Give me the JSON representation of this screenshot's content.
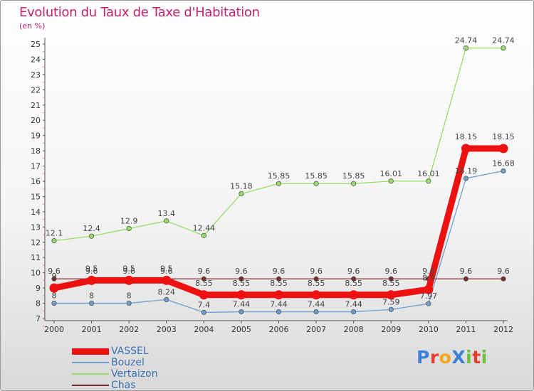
{
  "chart_data": {
    "type": "line",
    "title": "Evolution du Taux de Taxe d'Habitation",
    "subtitle": "(en %)",
    "x": [
      "2000",
      "2001",
      "2002",
      "2003",
      "2004",
      "2005",
      "2006",
      "2007",
      "2008",
      "2009",
      "2010",
      "2011",
      "2012"
    ],
    "ylim": [
      7,
      25
    ],
    "yticks": [
      7,
      8,
      9,
      10,
      11,
      12,
      13,
      14,
      15,
      16,
      17,
      18,
      19,
      20,
      21,
      22,
      23,
      24,
      25
    ],
    "grid": false,
    "legend_position": "bottom-left",
    "series": [
      {
        "name": "VASSEL",
        "color": "#ee1111",
        "values": [
          9.0,
          9.5,
          9.5,
          9.5,
          8.55,
          8.55,
          8.55,
          8.55,
          8.55,
          8.55,
          8.9,
          18.15,
          18.15
        ],
        "labels": [
          "9",
          "9.5",
          "9.5",
          "9.5",
          "8.55",
          "8.55",
          "8.55",
          "8.55",
          "8.55",
          "8.55",
          "8.9",
          "18.15",
          "18.15"
        ]
      },
      {
        "name": "Bouzel",
        "color": "#6f9fd0",
        "values": [
          8,
          8,
          8,
          8.24,
          7.4,
          7.44,
          7.44,
          7.44,
          7.44,
          7.59,
          7.97,
          16.19,
          16.68
        ],
        "labels": [
          "8",
          "8",
          "8",
          "8.24",
          "7.4",
          "7.44",
          "7.44",
          "7.44",
          "7.44",
          "7.59",
          "7.97",
          "16.19",
          "16.68"
        ]
      },
      {
        "name": "Vertaizon",
        "color": "#99dd66",
        "values": [
          12.1,
          12.4,
          12.9,
          13.4,
          12.44,
          15.18,
          15.85,
          15.85,
          15.85,
          16.01,
          16.01,
          24.74,
          24.74
        ],
        "labels": [
          "12.1",
          "12.4",
          "12.9",
          "13.4",
          "12.44",
          "15.18",
          "15.85",
          "15.85",
          "15.85",
          "16.01",
          "16.01",
          "24.74",
          "24.74"
        ]
      },
      {
        "name": "Chas",
        "color": "#7a2c2c",
        "values": [
          9.6,
          9.6,
          9.6,
          9.6,
          9.6,
          9.6,
          9.6,
          9.6,
          9.6,
          9.6,
          9.6,
          9.6,
          9.6
        ],
        "labels": [
          "9.6",
          "9.6",
          "9.6",
          "9.6",
          "9.6",
          "9.6",
          "9.6",
          "9.6",
          "9.6",
          "9.6",
          "9.6",
          "9.6",
          "9.6"
        ]
      }
    ]
  },
  "logo": {
    "text": "ProXiti",
    "letters": [
      "P",
      "r",
      "o",
      "X",
      "i",
      "t",
      "i"
    ],
    "colors": [
      "#3d7fd6",
      "#e53f2c",
      "#f2a61c",
      "#3d7fd6",
      "#6cbf3a",
      "#e53f2c",
      "#6cbf3a"
    ]
  }
}
